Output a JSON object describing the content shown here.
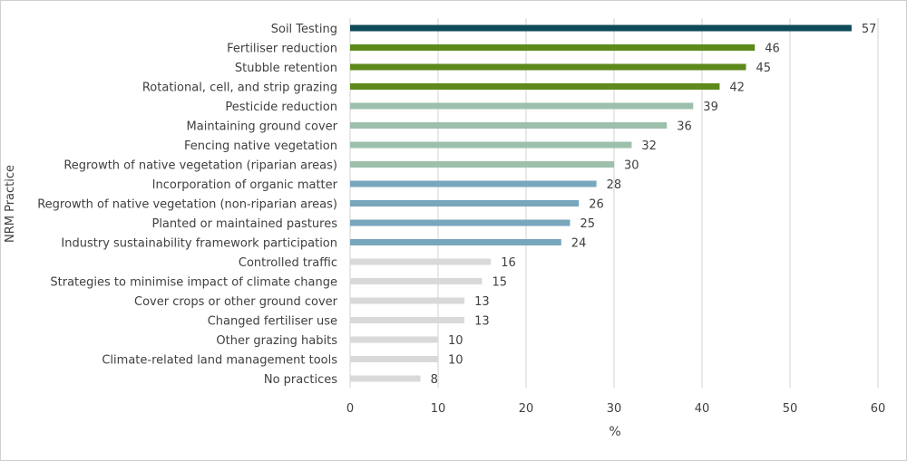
{
  "chart_data": {
    "type": "bar",
    "orientation": "horizontal",
    "title": "",
    "xlabel": "%",
    "ylabel": "NRM Practice",
    "xlim": [
      0,
      60
    ],
    "xticks": [
      0,
      10,
      20,
      30,
      40,
      50,
      60
    ],
    "grid": "vertical",
    "legend": "none",
    "categories": [
      "Soil Testing",
      "Fertiliser reduction",
      "Stubble retention",
      "Rotational, cell, and strip grazing",
      "Pesticide reduction",
      "Maintaining ground cover",
      "Fencing native vegetation",
      "Regrowth of native vegetation (riparian areas)",
      "Incorporation of organic matter",
      "Regrowth of native vegetation (non-riparian areas)",
      "Planted or maintained pastures",
      "Industry sustainability framework participation",
      "Controlled traffic",
      "Strategies to minimise impact of climate change",
      "Cover crops or other ground cover",
      "Changed fertiliser use",
      "Other grazing habits",
      "Climate-related land management tools",
      "No practices"
    ],
    "values": [
      57,
      46,
      45,
      42,
      39,
      36,
      32,
      30,
      28,
      26,
      25,
      24,
      16,
      15,
      13,
      13,
      10,
      10,
      8
    ],
    "bar_colors": [
      "#0f4c5a",
      "#5e8a1c",
      "#5e8a1c",
      "#5e8a1c",
      "#9dc0ac",
      "#9dc0ac",
      "#9dc0ac",
      "#9dc0ac",
      "#78a6bd",
      "#78a6bd",
      "#78a6bd",
      "#78a6bd",
      "#d9d9d9",
      "#d9d9d9",
      "#d9d9d9",
      "#d9d9d9",
      "#d9d9d9",
      "#d9d9d9",
      "#d9d9d9"
    ],
    "gridline_color": "#d9d9d9"
  }
}
